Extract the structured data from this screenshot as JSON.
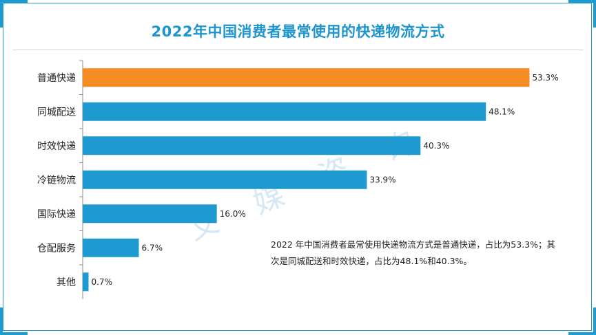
{
  "page": {
    "title": "2022年中国消费者最常使用的快递物流方式",
    "watermark": "艾 媒 咨 询",
    "note": "2022 年中国消费者最常使用快递物流方式是普通快递，占比为53.3%；其次是同城配送和时效快递，占比为48.1%和40.3%。"
  },
  "colors": {
    "highlight": "#f48c24",
    "bar": "#1f9ad1",
    "accent": "#1c95cf"
  },
  "chart_data": {
    "type": "bar",
    "orientation": "horizontal",
    "title": "2022年中国消费者最常使用的快递物流方式",
    "categories": [
      "普通快递",
      "同城配送",
      "时效快递",
      "冷链物流",
      "国际快递",
      "仓配服务",
      "其他"
    ],
    "values": [
      53.3,
      48.1,
      40.3,
      33.9,
      16.0,
      6.7,
      0.7
    ],
    "value_labels": [
      "53.3%",
      "48.1%",
      "40.3%",
      "33.9%",
      "16.0%",
      "6.7%",
      "0.7%"
    ],
    "highlight_index": 0,
    "xlim": [
      0,
      60
    ],
    "unit": "%",
    "grid": false
  }
}
